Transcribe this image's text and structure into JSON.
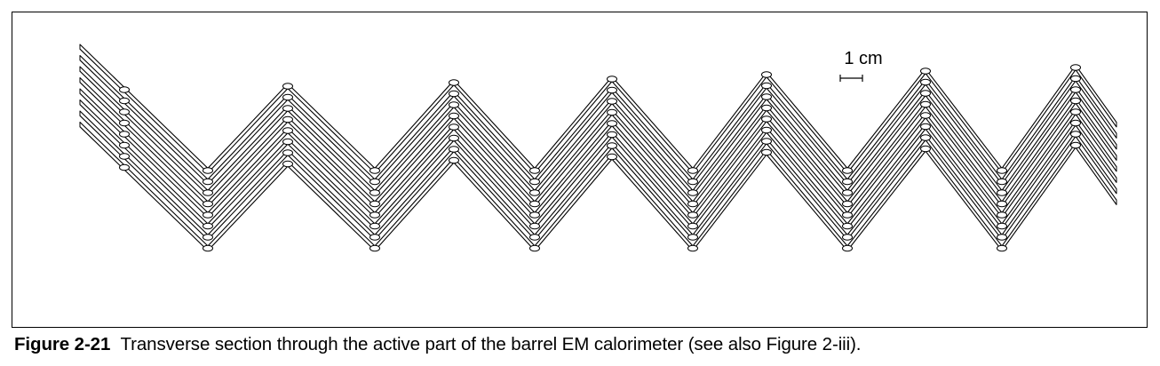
{
  "figure": {
    "scale_bar_label": "1 cm"
  },
  "caption": {
    "label": "Figure 2-21",
    "text": "Transverse section through the active part of the barrel EM calorimeter (see also Figure 2-iii)."
  },
  "colors": {
    "ink": "#000000",
    "background": "#ffffff"
  }
}
